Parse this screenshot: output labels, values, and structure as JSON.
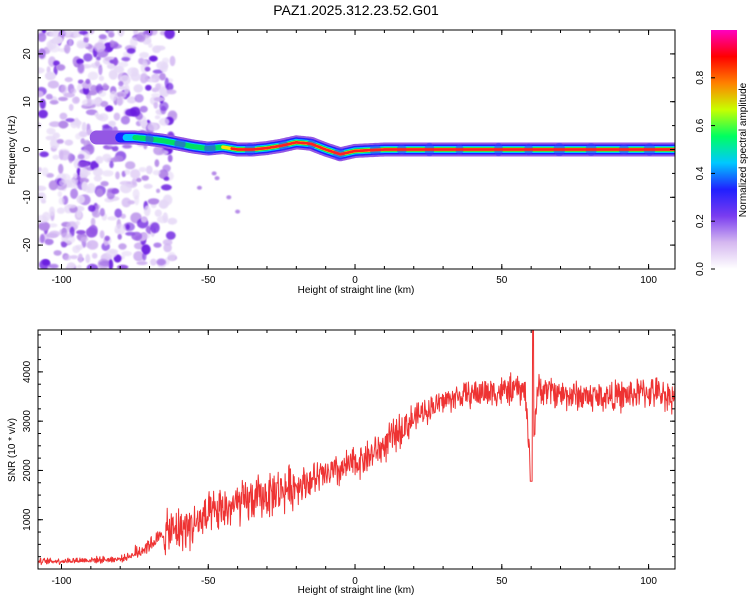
{
  "figure": {
    "title": "PAZ1.2025.312.23.52.G01"
  },
  "chart_data": [
    {
      "type": "heatmap",
      "title": "PAZ1.2025.312.23.52.G01",
      "xlabel": "Height of straight line (km)",
      "ylabel": "Frequency (Hz)",
      "xlim": [
        -108,
        109
      ],
      "ylim": [
        -25,
        25
      ],
      "xticks": [
        -100,
        -50,
        0,
        50,
        100
      ],
      "yticks": [
        -20,
        -10,
        0,
        10,
        20
      ],
      "colorbar": {
        "label": "Normalized spectral amplitude",
        "range": [
          0.0,
          1.0
        ],
        "ticks": [
          "0.0",
          "0.2",
          "0.4",
          "0.6",
          "0.8"
        ],
        "colors": [
          "#ffffff",
          "#d5b8f0",
          "#7a3cf0",
          "#2020ff",
          "#00c8ff",
          "#00ff60",
          "#c8ff00",
          "#ff8000",
          "#ff0000",
          "#ff00c0"
        ]
      },
      "ridge": {
        "x": [
          -85,
          -75,
          -70,
          -65,
          -60,
          -55,
          -50,
          -45,
          -40,
          -35,
          -30,
          -25,
          -20,
          -15,
          -10,
          -5,
          0,
          10,
          20,
          50,
          100,
          109
        ],
        "freq": [
          2.5,
          2.5,
          2.2,
          1.8,
          1.2,
          0.6,
          0.2,
          0.5,
          0.0,
          0.0,
          0.3,
          0.8,
          1.5,
          1.2,
          0.0,
          -1.0,
          -0.3,
          0.0,
          0.0,
          0.0,
          0.0,
          0.0
        ]
      }
    },
    {
      "type": "line",
      "xlabel": "Height of straight line (km)",
      "ylabel": "SNR (10 * v/v)",
      "xlim": [
        -108,
        109
      ],
      "ylim": [
        0,
        4850
      ],
      "xticks": [
        -100,
        -50,
        0,
        50,
        100
      ],
      "yticks": [
        1000,
        2000,
        3000,
        4000
      ],
      "series": [
        {
          "name": "SNR",
          "color": "#ee3333",
          "x": [
            -108,
            -80,
            -75,
            -70,
            -65,
            -60,
            -55,
            -50,
            -45,
            -40,
            -35,
            -30,
            -25,
            -20,
            -15,
            -10,
            -5,
            0,
            5,
            10,
            15,
            20,
            25,
            30,
            35,
            40,
            45,
            50,
            55,
            58,
            60,
            62,
            65,
            70,
            80,
            90,
            100,
            109
          ],
          "y": [
            150,
            200,
            300,
            500,
            700,
            800,
            900,
            1050,
            1200,
            1300,
            1400,
            1500,
            1600,
            1700,
            1800,
            1900,
            2000,
            2150,
            2300,
            2500,
            2800,
            3050,
            3250,
            3400,
            3500,
            3550,
            3600,
            3600,
            3650,
            3600,
            1800,
            3600,
            3650,
            3550,
            3500,
            3500,
            3600,
            3500
          ]
        }
      ]
    }
  ]
}
